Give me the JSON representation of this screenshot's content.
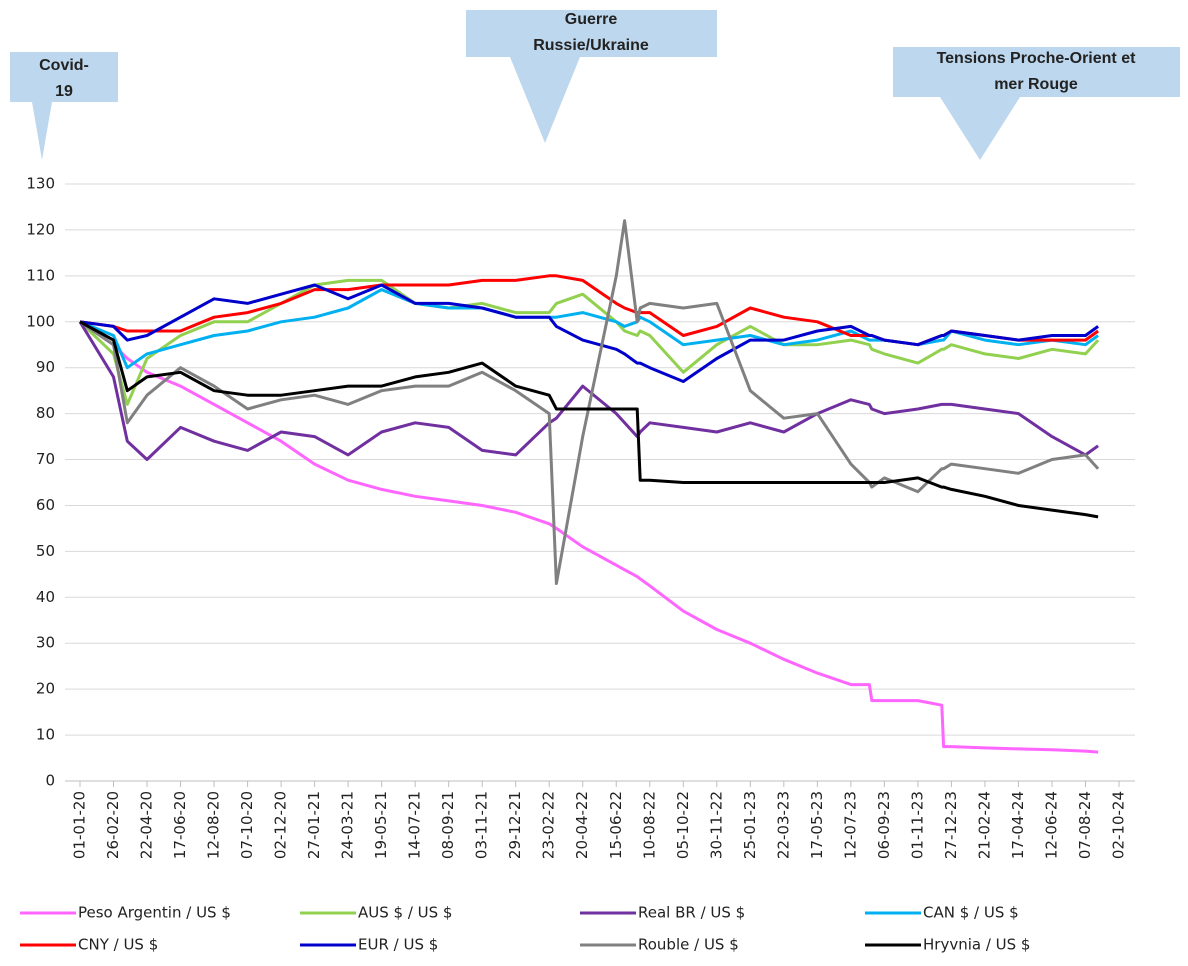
{
  "chart_data": {
    "type": "line",
    "annotations": [
      {
        "lines": [
          "Covid-",
          "19"
        ]
      },
      {
        "lines": [
          "Guerre",
          "Russie/Ukraine"
        ]
      },
      {
        "lines": [
          "Tensions Proche-Orient et",
          "mer Rouge"
        ]
      }
    ],
    "x": [
      "01-01-20",
      "26-02-20",
      "20-03-20",
      "22-04-20",
      "17-06-20",
      "12-08-20",
      "07-10-20",
      "02-12-20",
      "27-01-21",
      "24-03-21",
      "19-05-21",
      "14-07-21",
      "08-09-21",
      "03-11-21",
      "29-12-21",
      "23-02-22",
      "07-03-22",
      "20-04-22",
      "15-06-22",
      "29-06-22",
      "20-07-22",
      "25-07-22",
      "10-08-22",
      "05-10-22",
      "30-11-22",
      "25-01-23",
      "22-03-23",
      "17-05-23",
      "12-07-23",
      "12-08-23",
      "16-08-23",
      "06-09-23",
      "01-11-23",
      "11-12-23",
      "14-12-23",
      "27-12-23",
      "21-02-24",
      "17-04-24",
      "12-06-24",
      "07-08-24",
      "28-08-24"
    ],
    "series": [
      {
        "name": "Peso Argentin / US $",
        "color": "#ff66ff",
        "values": [
          100,
          95,
          92,
          89,
          86,
          82,
          78,
          74,
          69,
          65.5,
          63.5,
          62,
          61,
          60,
          58.5,
          56,
          55,
          51,
          47,
          46,
          44.5,
          44,
          42.5,
          37,
          33,
          30,
          26.5,
          23.5,
          21,
          21,
          17.5,
          17.5,
          17.5,
          16.5,
          7.5,
          7.5,
          7.2,
          7,
          6.8,
          6.5,
          6.3
        ]
      },
      {
        "name": "AUS $ / US $",
        "color": "#92d050",
        "values": [
          100,
          93,
          82,
          92,
          97,
          100,
          100,
          104,
          108,
          109,
          109,
          104,
          103,
          104,
          102,
          102,
          104,
          106,
          100,
          98,
          97,
          98,
          97,
          89,
          95,
          99,
          95,
          95,
          96,
          95,
          94,
          93,
          91,
          94,
          94,
          95,
          93,
          92,
          94,
          93,
          96
        ]
      },
      {
        "name": "Real BR / US $",
        "color": "#7030a0",
        "values": [
          100,
          88,
          74,
          70,
          77,
          74,
          72,
          76,
          75,
          71,
          76,
          78,
          77,
          72,
          71,
          78,
          79,
          86,
          80,
          78,
          75,
          76,
          78,
          77,
          76,
          78,
          76,
          80,
          83,
          82,
          81,
          80,
          81,
          82,
          82,
          82,
          81,
          80,
          75,
          71,
          73
        ]
      },
      {
        "name": "CAN $ / US $",
        "color": "#00b0f0",
        "values": [
          100,
          97,
          90,
          93,
          95,
          97,
          98,
          100,
          101,
          103,
          107,
          104,
          103,
          103,
          101,
          101,
          101,
          102,
          100,
          99,
          100,
          101,
          100,
          95,
          96,
          97,
          95,
          96,
          98,
          96,
          96,
          96,
          95,
          96,
          96,
          98,
          96,
          95,
          96,
          95,
          97
        ]
      },
      {
        "name": "CNY / US $",
        "color": "#ff0000",
        "values": [
          100,
          99,
          98,
          98,
          98,
          101,
          102,
          104,
          107,
          107,
          108,
          108,
          108,
          109,
          109,
          110,
          110,
          109,
          104,
          103,
          102,
          102,
          102,
          97,
          99,
          103,
          101,
          100,
          97,
          97,
          97,
          96,
          95,
          97,
          97,
          98,
          97,
          96,
          96,
          96,
          98
        ]
      },
      {
        "name": "EUR / US $",
        "color": "#0000cc",
        "values": [
          100,
          99,
          96,
          97,
          101,
          105,
          104,
          106,
          108,
          105,
          108,
          104,
          104,
          103,
          101,
          101,
          99,
          96,
          94,
          93,
          91,
          91,
          90,
          87,
          92,
          96,
          96,
          98,
          99,
          97,
          97,
          96,
          95,
          97,
          97,
          98,
          97,
          96,
          97,
          97,
          99
        ]
      },
      {
        "name": "Rouble / US $",
        "color": "#808080",
        "values": [
          100,
          95,
          78,
          84,
          90,
          86,
          81,
          83,
          84,
          82,
          85,
          86,
          86,
          89,
          85,
          80,
          43,
          75,
          110,
          122,
          100,
          103,
          104,
          103,
          104,
          85,
          79,
          80,
          69,
          65,
          64,
          66,
          63,
          68,
          68,
          69,
          68,
          67,
          70,
          71,
          68
        ]
      },
      {
        "name": "Hryvnia / US $",
        "color": "#000000",
        "values": [
          100,
          96,
          85,
          88,
          89,
          85,
          84,
          84,
          85,
          86,
          86,
          88,
          89,
          91,
          86,
          84,
          81,
          81,
          81,
          81,
          81,
          65.5,
          65.5,
          65,
          65,
          65,
          65,
          65,
          65,
          65,
          65,
          65,
          66,
          64,
          64,
          63.5,
          62,
          60,
          59,
          58,
          57.5
        ]
      }
    ],
    "xlim": [
      "01-01-20",
      "02-10-24"
    ],
    "xticks": [
      "01-01-20",
      "26-02-20",
      "22-04-20",
      "17-06-20",
      "12-08-20",
      "07-10-20",
      "02-12-20",
      "27-01-21",
      "24-03-21",
      "19-05-21",
      "14-07-21",
      "08-09-21",
      "03-11-21",
      "29-12-21",
      "23-02-22",
      "20-04-22",
      "15-06-22",
      "10-08-22",
      "05-10-22",
      "30-11-22",
      "25-01-23",
      "22-03-23",
      "17-05-23",
      "12-07-23",
      "06-09-23",
      "01-11-23",
      "27-12-23",
      "21-02-24",
      "17-04-24",
      "12-06-24",
      "07-08-24",
      "02-10-24"
    ],
    "ylim": [
      0,
      130
    ],
    "yticks": [
      0,
      10,
      20,
      30,
      40,
      50,
      60,
      70,
      80,
      90,
      100,
      110,
      120,
      130
    ],
    "grid": true
  }
}
